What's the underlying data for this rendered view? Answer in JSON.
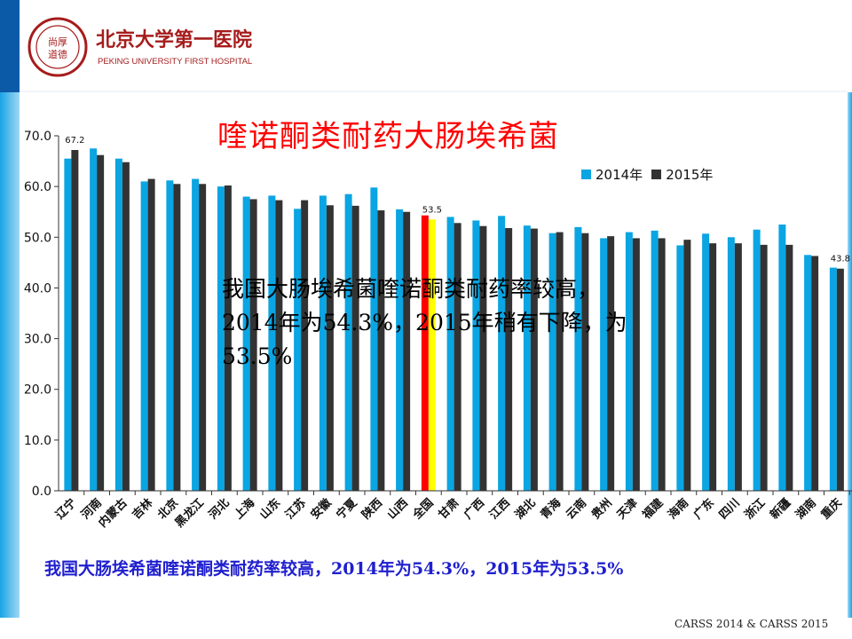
{
  "slide": {
    "title": "喹诺酮类耐药大肠埃希菌",
    "annotation": "我国大肠埃希菌喹诺酮类耐药率较高，2014年为54.3%，2015年稍有下降，为53.5%",
    "caption": "我国大肠埃希菌喹诺酮类耐药率较高，2014年为54.3%，2015年为53.5%",
    "footer": "CARSS 2014 & CARSS 2015"
  },
  "logo": {
    "name_cn": "北京大学第一医院",
    "name_en": "PEKING UNIVERSITY FIRST HOSPITAL",
    "seal_text": "尚厚道德"
  },
  "colors": {
    "series_2014": "#0aa5e2",
    "series_2015": "#333333",
    "highlight_2014": "#ff0000",
    "highlight_2015": "#ffff00",
    "title": "#ff0000",
    "caption": "#1f1fcf",
    "accent_bar": "#0b5aa8"
  },
  "chart_data": {
    "type": "bar",
    "categories": [
      "辽宁",
      "河南",
      "内蒙古",
      "吉林",
      "北京",
      "黑龙江",
      "河北",
      "上海",
      "山东",
      "江苏",
      "安徽",
      "宁夏",
      "陕西",
      "山西",
      "全国",
      "甘肃",
      "广西",
      "江西",
      "湖北",
      "青海",
      "云南",
      "贵州",
      "天津",
      "福建",
      "海南",
      "广东",
      "四川",
      "浙江",
      "新疆",
      "湖南",
      "重庆"
    ],
    "series": [
      {
        "name": "2014年",
        "values": [
          65.5,
          67.5,
          65.5,
          61.0,
          61.2,
          61.5,
          60.0,
          58.0,
          58.2,
          55.6,
          58.2,
          58.5,
          59.8,
          55.5,
          54.3,
          54.0,
          53.3,
          54.2,
          52.3,
          50.8,
          52.0,
          49.8,
          51.0,
          51.3,
          48.4,
          50.7,
          50.0,
          51.5,
          52.5,
          46.5,
          44.0
        ]
      },
      {
        "name": "2015年",
        "values": [
          67.2,
          66.2,
          64.8,
          61.5,
          60.5,
          60.5,
          60.2,
          57.5,
          57.3,
          57.3,
          56.3,
          56.2,
          55.3,
          55.0,
          53.5,
          52.8,
          52.2,
          51.8,
          51.7,
          51.0,
          50.8,
          50.2,
          49.8,
          49.8,
          49.5,
          48.8,
          48.8,
          48.5,
          48.5,
          46.3,
          43.8
        ]
      }
    ],
    "data_labels": [
      {
        "category": "辽宁",
        "series": "2015年",
        "text": "67.2"
      },
      {
        "category": "全国",
        "series": "2015年",
        "text": "53.5"
      },
      {
        "category": "重庆",
        "series": "2015年",
        "text": "43.8"
      }
    ],
    "highlight_category": "全国",
    "yticks": [
      "0.0",
      "10.0",
      "20.0",
      "30.0",
      "40.0",
      "50.0",
      "60.0",
      "70.0"
    ],
    "ylim": [
      0,
      70
    ],
    "grid": false,
    "legend_position": "top-right",
    "xlabel": "",
    "ylabel": ""
  }
}
